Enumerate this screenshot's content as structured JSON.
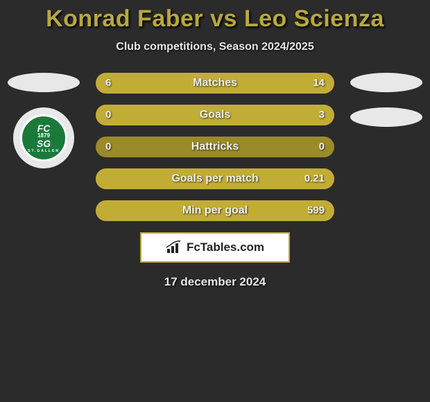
{
  "title": "Konrad Faber vs Leo Scienza",
  "subtitle": "Club competitions, Season 2024/2025",
  "date": "17 december 2024",
  "footer_brand": "FcTables.com",
  "colors": {
    "background": "#2b2b2b",
    "accent": "#b8a83f",
    "bar_track": "#9a8a2a",
    "bar_fill": "#c1ad36",
    "badge_bg": "#e8e8e8",
    "text_light": "#f0f0f0",
    "club_green": "#1a7a3a"
  },
  "club_badge": {
    "line1": "FC",
    "line2": "SG",
    "year": "1879",
    "bottom": "ST.GALLEN"
  },
  "stats": [
    {
      "label": "Matches",
      "left_val": "6",
      "right_val": "14",
      "left_pct": 30,
      "right_pct": 70
    },
    {
      "label": "Goals",
      "left_val": "0",
      "right_val": "3",
      "left_pct": 0,
      "right_pct": 100
    },
    {
      "label": "Hattricks",
      "left_val": "0",
      "right_val": "0",
      "left_pct": 0,
      "right_pct": 0
    },
    {
      "label": "Goals per match",
      "left_val": "",
      "right_val": "0.21",
      "left_pct": 0,
      "right_pct": 100
    },
    {
      "label": "Min per goal",
      "left_val": "",
      "right_val": "599",
      "left_pct": 0,
      "right_pct": 100
    }
  ]
}
